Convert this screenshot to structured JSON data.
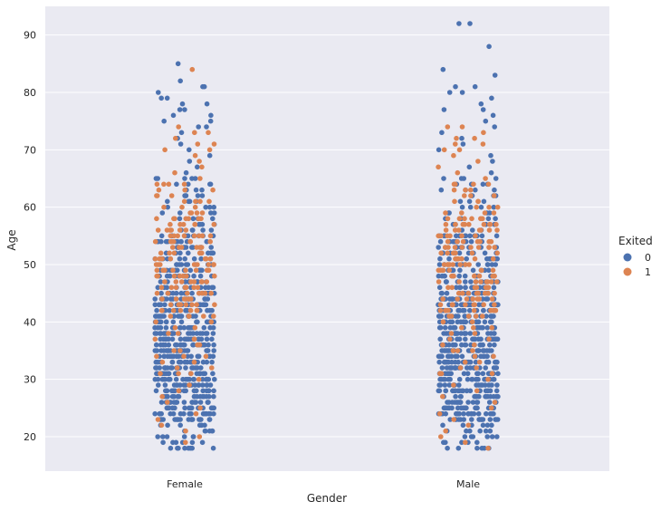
{
  "chart_data": {
    "type": "scatter",
    "subtype": "strip",
    "title": "",
    "xlabel": "Gender",
    "ylabel": "Age",
    "categories": [
      "Female",
      "Male"
    ],
    "ylim": [
      14,
      95
    ],
    "yticks": [
      20,
      30,
      40,
      50,
      60,
      70,
      80,
      90
    ],
    "grid": true,
    "legend": {
      "title": "Exited",
      "placement": "right",
      "entries": [
        {
          "label": "0",
          "color": "#4c72b0"
        },
        {
          "label": "1",
          "color": "#dd8452"
        }
      ]
    },
    "series": [
      {
        "hue": "0",
        "color": "#4c72b0",
        "by_category": {
          "Female": {
            "age_range": [
              18,
              85
            ],
            "dense_range": [
              23,
              50
            ],
            "outliers": [
              85,
              82,
              81,
              81,
              80,
              79,
              79,
              78,
              78,
              77,
              77,
              76,
              76,
              75,
              75,
              74
            ]
          },
          "Male": {
            "age_range": [
              18,
              92
            ],
            "dense_range": [
              24,
              50
            ],
            "outliers": [
              92,
              92,
              88,
              84,
              83,
              81,
              81,
              80,
              80,
              79,
              78,
              77,
              77,
              76,
              75
            ]
          }
        }
      },
      {
        "hue": "1",
        "color": "#dd8452",
        "by_category": {
          "Female": {
            "age_range": [
              19,
              84
            ],
            "dense_range": [
              44,
              62
            ],
            "outliers": [
              84,
              73,
              71,
              70
            ]
          },
          "Male": {
            "age_range": [
              18,
              74
            ],
            "dense_range": [
              43,
              64
            ],
            "outliers": [
              74,
              72,
              71,
              70
            ]
          }
        }
      }
    ]
  }
}
